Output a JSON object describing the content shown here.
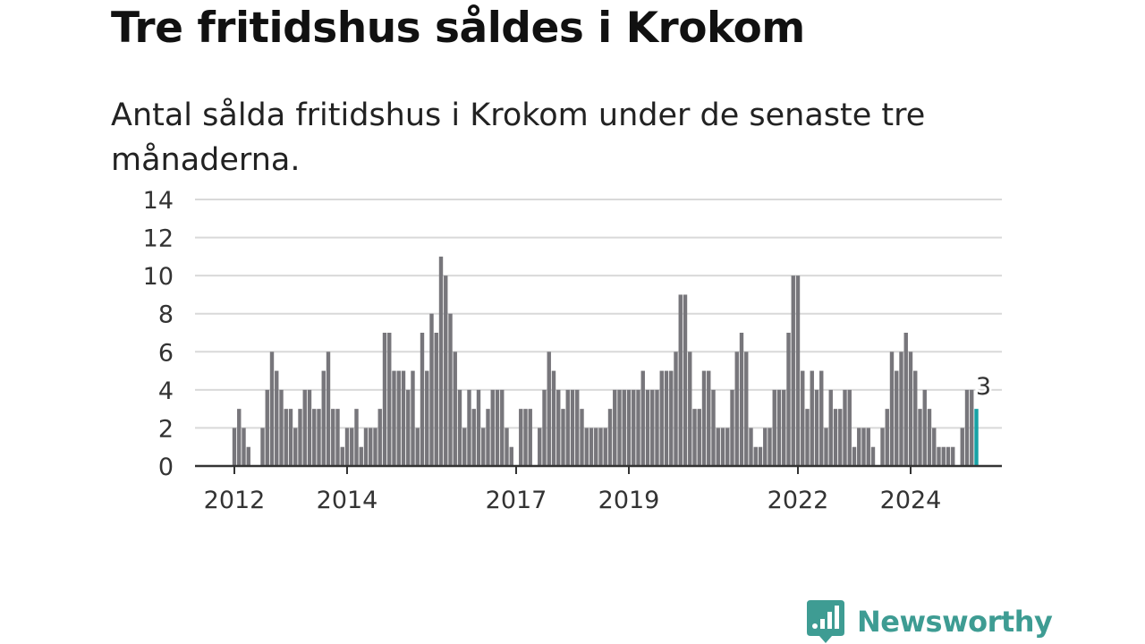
{
  "header": {
    "title": "Tre fritidshus såldes i Krokom",
    "subtitle": "Antal sålda fritidshus i Krokom under de senaste tre månaderna."
  },
  "brand": {
    "name": "Newsworthy",
    "color": "#3e9c93"
  },
  "colors": {
    "bar": "#77767b",
    "highlight": "#17a2a5",
    "grid": "#d9d9d9",
    "axis": "#333333"
  },
  "chart_data": {
    "type": "bar",
    "title": "Tre fritidshus såldes i Krokom",
    "subtitle": "Antal sålda fritidshus i Krokom under de senaste tre månaderna.",
    "xlabel": "",
    "ylabel": "",
    "ylim": [
      0,
      14
    ],
    "yticks": [
      0,
      2,
      4,
      6,
      8,
      10,
      12,
      14
    ],
    "xticks": [
      "2012",
      "2014",
      "2017",
      "2019",
      "2022",
      "2024"
    ],
    "x_range": [
      "2012-01",
      "2025-03"
    ],
    "grid": true,
    "legend": "none",
    "highlight_label": "3",
    "months": [
      "2012-01",
      "2012-02",
      "2012-03",
      "2012-04",
      "2012-05",
      "2012-06",
      "2012-07",
      "2012-08",
      "2012-09",
      "2012-10",
      "2012-11",
      "2012-12",
      "2013-01",
      "2013-02",
      "2013-03",
      "2013-04",
      "2013-05",
      "2013-06",
      "2013-07",
      "2013-08",
      "2013-09",
      "2013-10",
      "2013-11",
      "2013-12",
      "2014-01",
      "2014-02",
      "2014-03",
      "2014-04",
      "2014-05",
      "2014-06",
      "2014-07",
      "2014-08",
      "2014-09",
      "2014-10",
      "2014-11",
      "2014-12",
      "2015-01",
      "2015-02",
      "2015-03",
      "2015-04",
      "2015-05",
      "2015-06",
      "2015-07",
      "2015-08",
      "2015-09",
      "2015-10",
      "2015-11",
      "2015-12",
      "2016-01",
      "2016-02",
      "2016-03",
      "2016-04",
      "2016-05",
      "2016-06",
      "2016-07",
      "2016-08",
      "2016-09",
      "2016-10",
      "2016-11",
      "2016-12",
      "2017-01",
      "2017-02",
      "2017-03",
      "2017-04",
      "2017-05",
      "2017-06",
      "2017-07",
      "2017-08",
      "2017-09",
      "2017-10",
      "2017-11",
      "2017-12",
      "2018-01",
      "2018-02",
      "2018-03",
      "2018-04",
      "2018-05",
      "2018-06",
      "2018-07",
      "2018-08",
      "2018-09",
      "2018-10",
      "2018-11",
      "2018-12",
      "2019-01",
      "2019-02",
      "2019-03",
      "2019-04",
      "2019-05",
      "2019-06",
      "2019-07",
      "2019-08",
      "2019-09",
      "2019-10",
      "2019-11",
      "2019-12",
      "2020-01",
      "2020-02",
      "2020-03",
      "2020-04",
      "2020-05",
      "2020-06",
      "2020-07",
      "2020-08",
      "2020-09",
      "2020-10",
      "2020-11",
      "2020-12",
      "2021-01",
      "2021-02",
      "2021-03",
      "2021-04",
      "2021-05",
      "2021-06",
      "2021-07",
      "2021-08",
      "2021-09",
      "2021-10",
      "2021-11",
      "2021-12",
      "2022-01",
      "2022-02",
      "2022-03",
      "2022-04",
      "2022-05",
      "2022-06",
      "2022-07",
      "2022-08",
      "2022-09",
      "2022-10",
      "2022-11",
      "2022-12",
      "2023-01",
      "2023-02",
      "2023-03",
      "2023-04",
      "2023-05",
      "2023-06",
      "2023-07",
      "2023-08",
      "2023-09",
      "2023-10",
      "2023-11",
      "2023-12",
      "2024-01",
      "2024-02",
      "2024-03",
      "2024-04",
      "2024-05",
      "2024-06",
      "2024-07",
      "2024-08",
      "2024-09",
      "2024-10",
      "2024-11",
      "2024-12",
      "2025-01",
      "2025-02",
      "2025-03"
    ],
    "values": [
      2,
      3,
      2,
      1,
      0,
      0,
      2,
      4,
      6,
      5,
      4,
      3,
      3,
      2,
      3,
      4,
      4,
      3,
      3,
      5,
      6,
      3,
      3,
      1,
      2,
      2,
      3,
      1,
      2,
      2,
      2,
      3,
      7,
      7,
      5,
      5,
      5,
      4,
      5,
      2,
      7,
      5,
      8,
      7,
      11,
      10,
      8,
      6,
      4,
      2,
      4,
      3,
      4,
      2,
      3,
      4,
      4,
      4,
      2,
      1,
      0,
      3,
      3,
      3,
      0,
      2,
      4,
      6,
      5,
      4,
      3,
      4,
      4,
      4,
      3,
      2,
      2,
      2,
      2,
      2,
      3,
      4,
      4,
      4,
      4,
      4,
      4,
      5,
      4,
      4,
      4,
      5,
      5,
      5,
      6,
      9,
      9,
      6,
      3,
      3,
      5,
      5,
      4,
      2,
      2,
      2,
      4,
      6,
      7,
      6,
      2,
      1,
      1,
      2,
      2,
      4,
      4,
      4,
      7,
      10,
      10,
      5,
      3,
      5,
      4,
      5,
      2,
      4,
      3,
      3,
      4,
      4,
      1,
      2,
      2,
      2,
      1,
      0,
      2,
      3,
      6,
      5,
      6,
      7,
      6,
      5,
      3,
      4,
      3,
      2,
      1,
      1,
      1,
      1,
      0,
      2,
      4,
      4,
      3
    ]
  }
}
